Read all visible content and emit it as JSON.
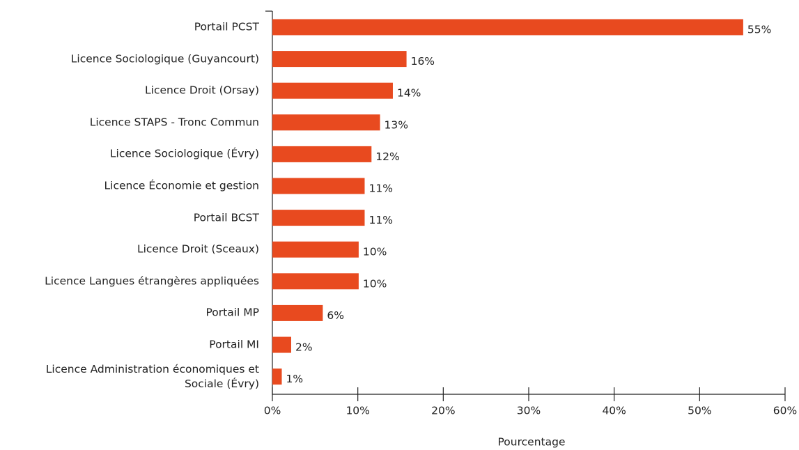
{
  "chart_data": {
    "type": "hbar",
    "x_label": "Pourcentage",
    "categories": [
      "Portail PCST",
      "Licence Sociologique (Guyancourt)",
      "Licence Droit (Orsay)",
      "Licence STAPS - Tronc Commun",
      "Licence Sociologique (Évry)",
      "Licence Économie et gestion",
      "Portail BCST",
      "Licence Droit (Sceaux)",
      "Licence Langues étrangères appliquées",
      "Portail MP",
      "Portail MI",
      "Licence Administration économiques et Sociale (Évry)"
    ],
    "values": [
      55.1,
      15.7,
      14.1,
      12.6,
      11.6,
      10.8,
      10.8,
      10.1,
      10.1,
      5.9,
      2.2,
      1.1
    ],
    "value_labels": [
      "55%",
      "16%",
      "14%",
      "13%",
      "12%",
      "11%",
      "11%",
      "10%",
      "10%",
      "6%",
      "2%",
      "1%"
    ],
    "color": "#e84a1f",
    "xlim": [
      0,
      60
    ],
    "xticks": [
      {
        "value": 0,
        "label": "0%"
      },
      {
        "value": 10,
        "label": "10%"
      },
      {
        "value": 20,
        "label": "20%"
      },
      {
        "value": 30,
        "label": "30%"
      },
      {
        "value": 40,
        "label": "40%"
      },
      {
        "value": 50,
        "label": "50%"
      },
      {
        "value": 60,
        "label": "60%"
      }
    ],
    "grid": false
  }
}
